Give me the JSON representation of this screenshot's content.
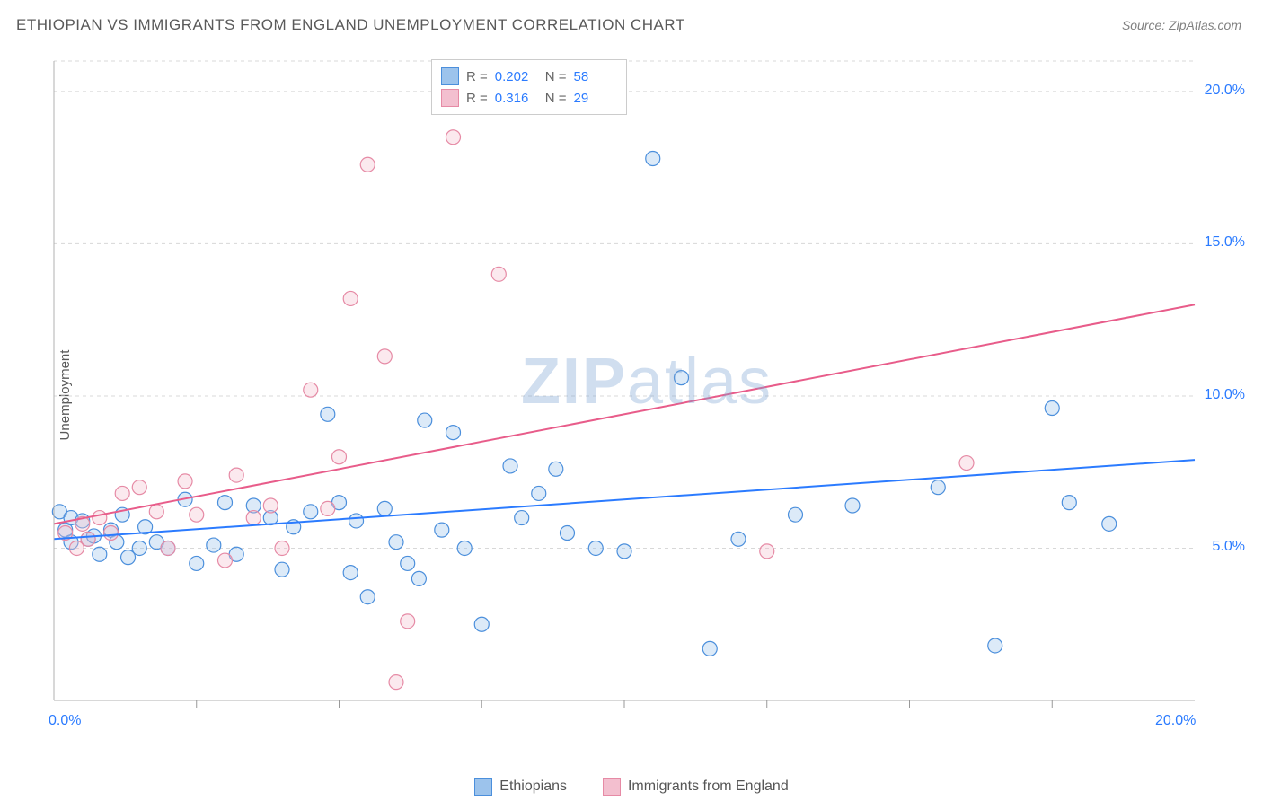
{
  "header": {
    "title": "ETHIOPIAN VS IMMIGRANTS FROM ENGLAND UNEMPLOYMENT CORRELATION CHART",
    "source": "Source: ZipAtlas.com"
  },
  "ylabel": "Unemployment",
  "watermark": {
    "bold": "ZIP",
    "light": "atlas"
  },
  "chart": {
    "type": "scatter",
    "xlim": [
      0,
      20
    ],
    "ylim": [
      0,
      21
    ],
    "xtick_major": [
      0,
      20
    ],
    "xtick_minor": [
      2.5,
      5.0,
      7.5,
      10.0,
      12.5,
      15.0,
      17.5
    ],
    "ytick_major": [
      5,
      10,
      15,
      20
    ],
    "xlabel_format": "{v}.0%",
    "ylabel_format": "{v}.0%",
    "grid_color": "#d8d8d8",
    "grid_dash": "4,4",
    "axis_color": "#b0b0b0",
    "tick_color": "#999999",
    "background": "#ffffff",
    "axis_value_color": "#2b7bff",
    "marker_radius": 8,
    "marker_stroke_width": 1.2,
    "marker_fill_opacity": 0.35
  },
  "series": [
    {
      "name": "Ethiopians",
      "color_stroke": "#4b8fdc",
      "color_fill": "#9cc3ec",
      "line_color": "#2b7bff",
      "line_width": 2,
      "trend": {
        "x1": 0,
        "y1": 5.3,
        "x2": 20,
        "y2": 7.9
      },
      "stats": {
        "R": "0.202",
        "N": "58"
      },
      "points": [
        [
          0.1,
          6.2
        ],
        [
          0.2,
          5.6
        ],
        [
          0.3,
          6.0
        ],
        [
          0.3,
          5.2
        ],
        [
          0.5,
          5.9
        ],
        [
          0.6,
          5.3
        ],
        [
          0.7,
          5.4
        ],
        [
          0.8,
          4.8
        ],
        [
          1.0,
          5.6
        ],
        [
          1.1,
          5.2
        ],
        [
          1.2,
          6.1
        ],
        [
          1.3,
          4.7
        ],
        [
          1.5,
          5.0
        ],
        [
          1.6,
          5.7
        ],
        [
          1.8,
          5.2
        ],
        [
          2.0,
          5.0
        ],
        [
          2.3,
          6.6
        ],
        [
          2.5,
          4.5
        ],
        [
          2.8,
          5.1
        ],
        [
          3.0,
          6.5
        ],
        [
          3.2,
          4.8
        ],
        [
          3.5,
          6.4
        ],
        [
          3.8,
          6.0
        ],
        [
          4.0,
          4.3
        ],
        [
          4.2,
          5.7
        ],
        [
          4.5,
          6.2
        ],
        [
          4.8,
          9.4
        ],
        [
          5.0,
          6.5
        ],
        [
          5.2,
          4.2
        ],
        [
          5.3,
          5.9
        ],
        [
          5.5,
          3.4
        ],
        [
          5.8,
          6.3
        ],
        [
          6.0,
          5.2
        ],
        [
          6.2,
          4.5
        ],
        [
          6.4,
          4.0
        ],
        [
          6.5,
          9.2
        ],
        [
          6.8,
          5.6
        ],
        [
          7.0,
          8.8
        ],
        [
          7.2,
          5.0
        ],
        [
          7.5,
          2.5
        ],
        [
          8.0,
          7.7
        ],
        [
          8.2,
          6.0
        ],
        [
          8.5,
          6.8
        ],
        [
          8.8,
          7.6
        ],
        [
          9.0,
          5.5
        ],
        [
          9.5,
          5.0
        ],
        [
          10.0,
          4.9
        ],
        [
          10.5,
          17.8
        ],
        [
          11.0,
          10.6
        ],
        [
          11.5,
          1.7
        ],
        [
          12.0,
          5.3
        ],
        [
          13.0,
          6.1
        ],
        [
          14.0,
          6.4
        ],
        [
          15.5,
          7.0
        ],
        [
          16.5,
          1.8
        ],
        [
          17.5,
          9.6
        ],
        [
          17.8,
          6.5
        ],
        [
          18.5,
          5.8
        ]
      ]
    },
    {
      "name": "Immigrants from England",
      "color_stroke": "#e68aa5",
      "color_fill": "#f3bfcf",
      "line_color": "#e85c8a",
      "line_width": 2,
      "trend": {
        "x1": 0,
        "y1": 5.8,
        "x2": 20,
        "y2": 13.0
      },
      "stats": {
        "R": "0.316",
        "N": "29"
      },
      "points": [
        [
          0.2,
          5.5
        ],
        [
          0.4,
          5.0
        ],
        [
          0.5,
          5.8
        ],
        [
          0.6,
          5.3
        ],
        [
          0.8,
          6.0
        ],
        [
          1.0,
          5.5
        ],
        [
          1.2,
          6.8
        ],
        [
          1.5,
          7.0
        ],
        [
          1.8,
          6.2
        ],
        [
          2.0,
          5.0
        ],
        [
          2.3,
          7.2
        ],
        [
          2.5,
          6.1
        ],
        [
          3.0,
          4.6
        ],
        [
          3.2,
          7.4
        ],
        [
          3.5,
          6.0
        ],
        [
          3.8,
          6.4
        ],
        [
          4.0,
          5.0
        ],
        [
          4.5,
          10.2
        ],
        [
          4.8,
          6.3
        ],
        [
          5.0,
          8.0
        ],
        [
          5.2,
          13.2
        ],
        [
          5.5,
          17.6
        ],
        [
          5.8,
          11.3
        ],
        [
          6.0,
          0.6
        ],
        [
          6.2,
          2.6
        ],
        [
          7.0,
          18.5
        ],
        [
          7.8,
          14.0
        ],
        [
          12.5,
          4.9
        ],
        [
          16.0,
          7.8
        ]
      ]
    }
  ],
  "stats_legend": {
    "rows": [
      {
        "swatch_fill": "#9cc3ec",
        "swatch_stroke": "#4b8fdc",
        "R_label": "R =",
        "R": "0.202",
        "N_label": "N =",
        "N": "58"
      },
      {
        "swatch_fill": "#f3bfcf",
        "swatch_stroke": "#e68aa5",
        "R_label": "R =",
        "R": "0.316",
        "N_label": "N =",
        "N": "29"
      }
    ]
  },
  "bottom_legend": [
    {
      "swatch_fill": "#9cc3ec",
      "swatch_stroke": "#4b8fdc",
      "label": "Ethiopians"
    },
    {
      "swatch_fill": "#f3bfcf",
      "swatch_stroke": "#e68aa5",
      "label": "Immigrants from England"
    }
  ]
}
